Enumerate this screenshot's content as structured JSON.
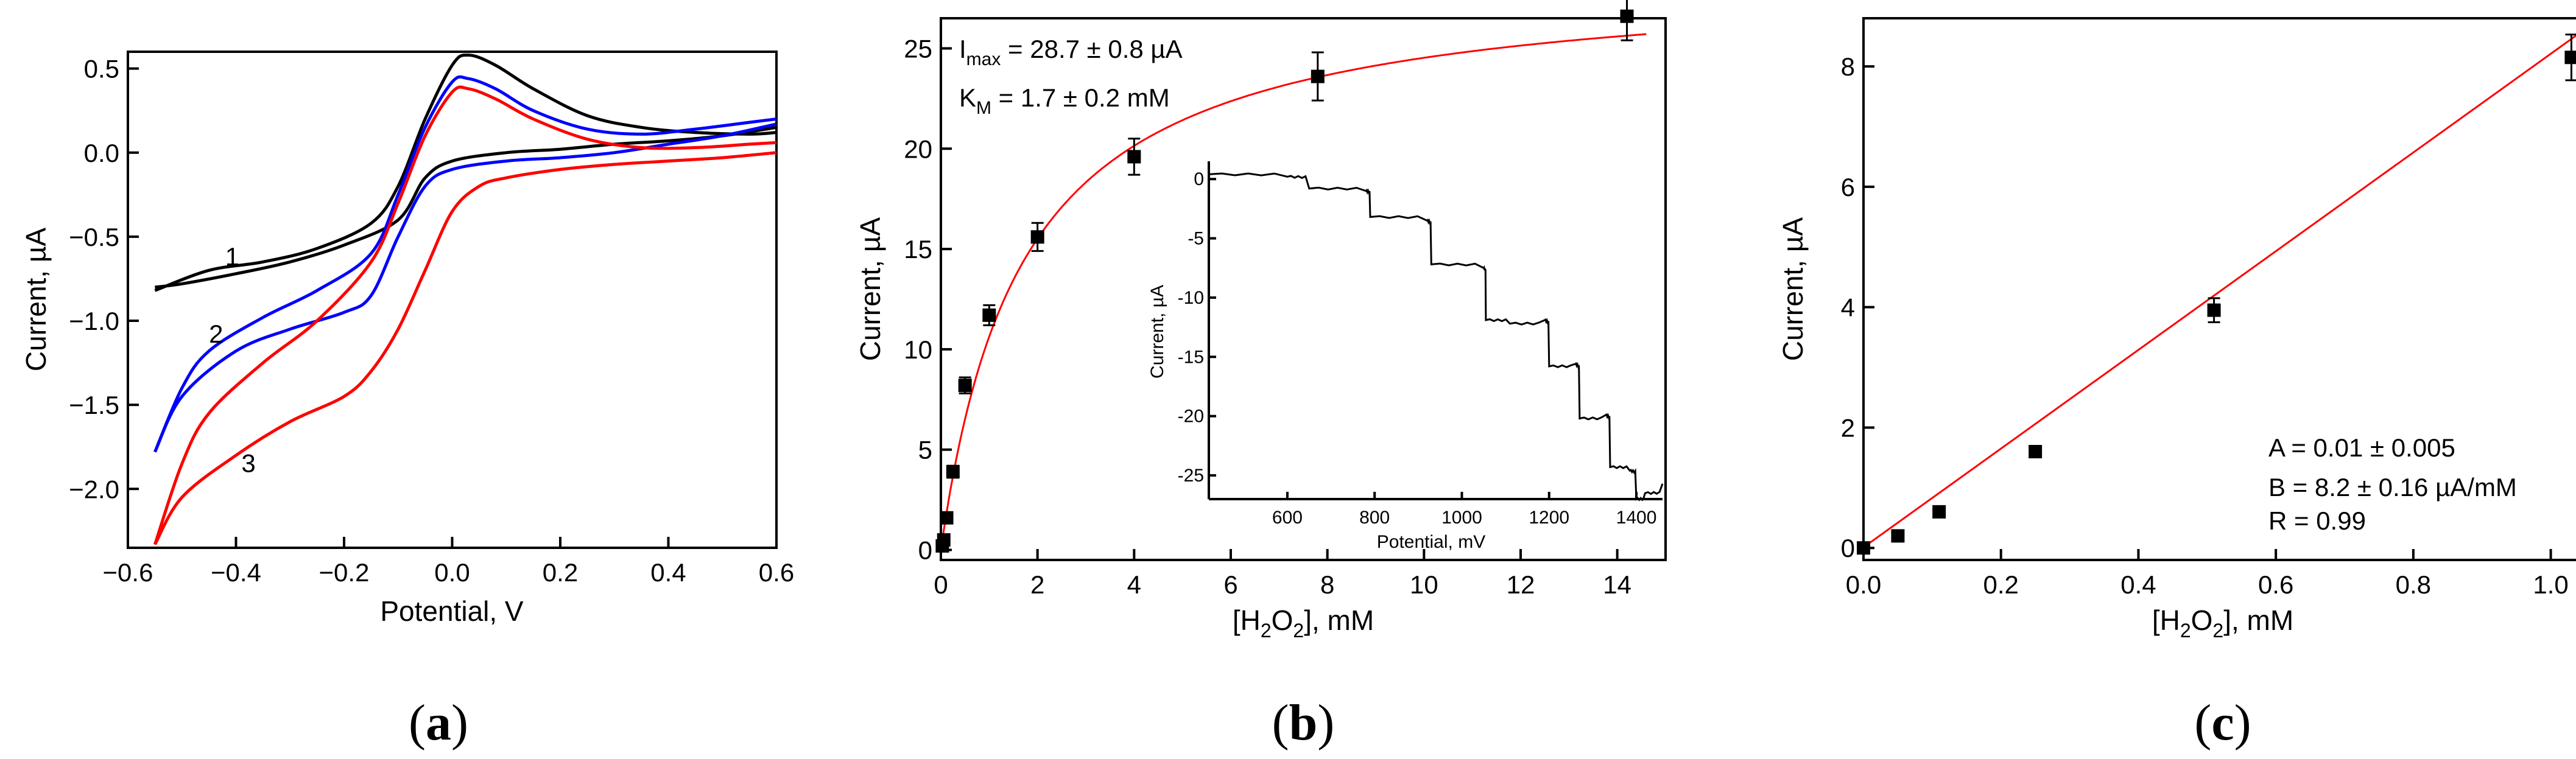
{
  "chart_data": [
    {
      "panel": "(a)",
      "type": "line",
      "xlabel": "Potential, V",
      "ylabel": "Current, µA",
      "xlim": [
        -0.6,
        0.6
      ],
      "ylim": [
        -2.35,
        0.6
      ],
      "xticks": [
        -0.6,
        -0.4,
        -0.2,
        0.0,
        0.2,
        0.4,
        0.6
      ],
      "xtick_labels": [
        "−0.6",
        "−0.4",
        "−0.2",
        "0.0",
        "0.2",
        "0.4",
        "0.6"
      ],
      "yticks": [
        0.5,
        0.0,
        -0.5,
        -1.0,
        -1.5,
        -2.0
      ],
      "ytick_labels": [
        "0.5",
        "0.0",
        "−0.5",
        "−1.0",
        "−1.5",
        "−2.0"
      ],
      "series": [
        {
          "name": "1",
          "color": "#000000",
          "forward": {
            "x": [
              -0.55,
              -0.45,
              -0.35,
              -0.25,
              -0.15,
              -0.1,
              -0.05,
              0.0,
              0.03,
              0.08,
              0.15,
              0.25,
              0.35,
              0.45,
              0.55,
              0.6
            ],
            "y": [
              -0.82,
              -0.7,
              -0.65,
              -0.57,
              -0.42,
              -0.2,
              0.2,
              0.52,
              0.58,
              0.52,
              0.38,
              0.22,
              0.15,
              0.12,
              0.11,
              0.12
            ]
          },
          "backward": {
            "x": [
              0.6,
              0.5,
              0.4,
              0.3,
              0.2,
              0.1,
              0.0,
              -0.05,
              -0.1,
              -0.2,
              -0.3,
              -0.4,
              -0.5,
              -0.55
            ],
            "y": [
              0.15,
              0.1,
              0.07,
              0.05,
              0.02,
              0.0,
              -0.05,
              -0.15,
              -0.4,
              -0.55,
              -0.65,
              -0.72,
              -0.78,
              -0.8
            ]
          }
        },
        {
          "name": "2",
          "color": "#0000ff",
          "forward": {
            "x": [
              -0.55,
              -0.5,
              -0.45,
              -0.35,
              -0.25,
              -0.15,
              -0.1,
              -0.05,
              0.0,
              0.03,
              0.08,
              0.15,
              0.25,
              0.35,
              0.45,
              0.55,
              0.6
            ],
            "y": [
              -1.78,
              -1.4,
              -1.18,
              -0.98,
              -0.82,
              -0.6,
              -0.25,
              0.15,
              0.42,
              0.44,
              0.38,
              0.25,
              0.14,
              0.11,
              0.14,
              0.18,
              0.2
            ]
          },
          "backward": {
            "x": [
              0.6,
              0.5,
              0.4,
              0.3,
              0.2,
              0.1,
              0.0,
              -0.05,
              -0.1,
              -0.15,
              -0.2,
              -0.3,
              -0.4,
              -0.5,
              -0.55
            ],
            "y": [
              0.17,
              0.1,
              0.05,
              0.0,
              -0.03,
              -0.05,
              -0.1,
              -0.2,
              -0.5,
              -0.85,
              -0.95,
              -1.05,
              -1.18,
              -1.45,
              -1.78
            ]
          }
        },
        {
          "name": "3",
          "color": "#ff0000",
          "forward": {
            "x": [
              -0.55,
              -0.5,
              -0.45,
              -0.35,
              -0.25,
              -0.15,
              -0.1,
              -0.05,
              0.0,
              0.03,
              0.08,
              0.15,
              0.25,
              0.35,
              0.45,
              0.55,
              0.6
            ],
            "y": [
              -2.33,
              -1.85,
              -1.55,
              -1.25,
              -1.0,
              -0.65,
              -0.3,
              0.1,
              0.36,
              0.38,
              0.32,
              0.2,
              0.08,
              0.03,
              0.03,
              0.05,
              0.06
            ]
          },
          "backward": {
            "x": [
              0.6,
              0.5,
              0.4,
              0.3,
              0.2,
              0.1,
              0.05,
              0.0,
              -0.05,
              -0.1,
              -0.15,
              -0.2,
              -0.3,
              -0.4,
              -0.5,
              -0.55
            ],
            "y": [
              0.0,
              -0.03,
              -0.05,
              -0.07,
              -0.1,
              -0.15,
              -0.2,
              -0.35,
              -0.7,
              -1.05,
              -1.3,
              -1.45,
              -1.6,
              -1.8,
              -2.05,
              -2.33
            ]
          }
        }
      ],
      "curve_labels": [
        {
          "text": "1",
          "x": -0.42,
          "y": -0.67
        },
        {
          "text": "2",
          "x": -0.45,
          "y": -1.13
        },
        {
          "text": "3",
          "x": -0.39,
          "y": -1.9
        }
      ]
    },
    {
      "panel": "(b)",
      "type": "scatter",
      "xlabel_main": "[H",
      "xlabel_sub1": "2",
      "xlabel_mid": "O",
      "xlabel_sub2": "2",
      "xlabel_end": "], mM",
      "ylabel": "Current, µA",
      "xlim": [
        0,
        15
      ],
      "ylim": [
        -0.5,
        26.5
      ],
      "xticks": [
        0,
        2,
        4,
        6,
        8,
        10,
        12,
        14
      ],
      "xtick_labels": [
        "0",
        "2",
        "4",
        "6",
        "8",
        "10",
        "12",
        "14"
      ],
      "yticks": [
        0,
        5,
        10,
        15,
        20,
        25
      ],
      "ytick_labels": [
        "0",
        "5",
        "10",
        "15",
        "20",
        "25"
      ],
      "points": {
        "x": [
          0.03,
          0.06,
          0.12,
          0.25,
          0.5,
          1.0,
          2.0,
          4.0,
          7.8,
          14.2
        ],
        "y": [
          0.2,
          0.5,
          1.6,
          3.9,
          8.2,
          11.7,
          15.6,
          19.6,
          23.6,
          26.6
        ],
        "err": [
          0.1,
          0.1,
          0.2,
          0.3,
          0.4,
          0.5,
          0.7,
          0.9,
          1.2,
          1.2
        ]
      },
      "fit": {
        "model": "michaelis-menten",
        "imax": 28.7,
        "km": 1.7,
        "color": "#ff0000"
      },
      "annotations": {
        "imax_prefix": "I",
        "imax_sub": "max",
        "imax_text": " = 28.7 ± 0.8 µA",
        "km_prefix": "K",
        "km_sub": "M",
        "km_text": "  = 1.7 ± 0.2 mM"
      },
      "inset": {
        "type": "line",
        "xlabel": "Potential, mV",
        "ylabel": "Current, µA",
        "xlim": [
          420,
          1460
        ],
        "ylim": [
          -27,
          1.5
        ],
        "xticks": [
          600,
          800,
          1000,
          1200,
          1400
        ],
        "xtick_labels": [
          "600",
          "800",
          "1000",
          "1200",
          "1400"
        ],
        "yticks": [
          0,
          -5,
          -10,
          -15,
          -20,
          -25
        ],
        "ytick_labels": [
          "0",
          "-5",
          "-10",
          "-15",
          "-20",
          "-25"
        ],
        "steps": [
          [
            420,
            0.4
          ],
          [
            600,
            0.2
          ],
          [
            650,
            -0.8
          ],
          [
            780,
            -1.0
          ],
          [
            790,
            -3.2
          ],
          [
            920,
            -3.5
          ],
          [
            930,
            -7.2
          ],
          [
            1050,
            -7.5
          ],
          [
            1055,
            -11.9
          ],
          [
            1110,
            -12.2
          ],
          [
            1190,
            -11.9
          ],
          [
            1200,
            -15.8
          ],
          [
            1260,
            -15.6
          ],
          [
            1270,
            -20.2
          ],
          [
            1330,
            -19.9
          ],
          [
            1340,
            -24.3
          ],
          [
            1385,
            -24.6
          ],
          [
            1400,
            -27.0
          ],
          [
            1420,
            -26.5
          ],
          [
            1460,
            -25.7
          ]
        ]
      }
    },
    {
      "panel": "(c)",
      "type": "scatter",
      "xlabel_main": "[H",
      "xlabel_sub1": "2",
      "xlabel_mid": "O",
      "xlabel_sub2": "2",
      "xlabel_end": "], mM",
      "ylabel": "Current, µA",
      "xlim": [
        0,
        1.05
      ],
      "ylim": [
        -0.2,
        8.8
      ],
      "xticks": [
        0.0,
        0.2,
        0.4,
        0.6,
        0.8,
        1.0
      ],
      "xtick_labels": [
        "0.0",
        "0.2",
        "0.4",
        "0.6",
        "0.8",
        "1.0"
      ],
      "yticks": [
        0,
        2,
        4,
        6,
        8
      ],
      "ytick_labels": [
        "0",
        "2",
        "4",
        "6",
        "8"
      ],
      "points": {
        "x": [
          0.0,
          0.05,
          0.11,
          0.25,
          0.51,
          1.03
        ],
        "y": [
          0.0,
          0.2,
          0.6,
          1.6,
          3.95,
          8.15
        ],
        "err": [
          0.03,
          0.05,
          0.06,
          0.08,
          0.2,
          0.38
        ]
      },
      "fit": {
        "model": "linear",
        "a": 0.01,
        "b": 8.2,
        "color": "#ff0000"
      },
      "annotations": {
        "a_text": "A = 0.01 ± 0.005",
        "b_text": "B =  8.2 ± 0.16 µA/mM",
        "r_text": "R = 0.99"
      }
    }
  ],
  "panel_labels": {
    "a_open": "(",
    "a": "a",
    "a_close": ")",
    "b_open": "(",
    "b": "b",
    "b_close": ")",
    "c_open": "(",
    "c": "c",
    "c_close": ")"
  }
}
